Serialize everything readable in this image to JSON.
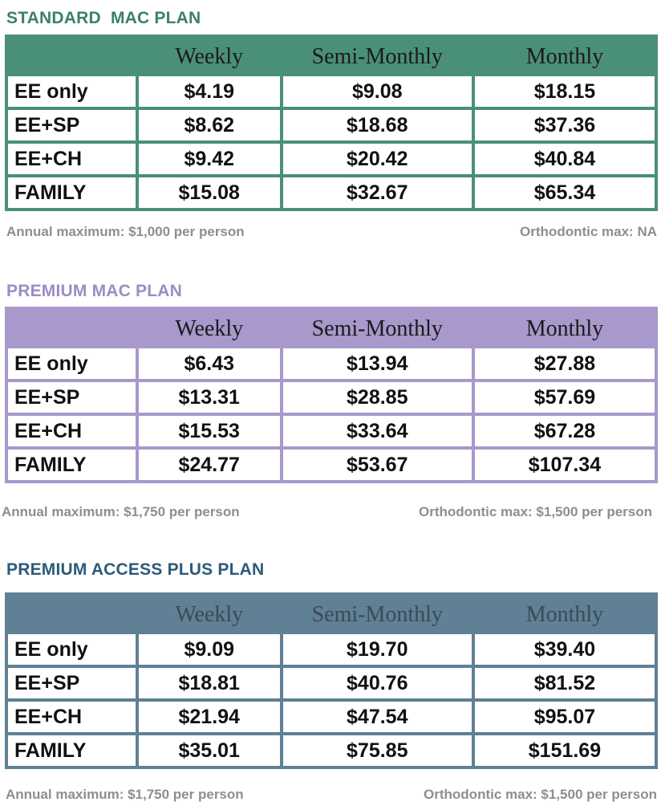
{
  "columns": [
    "Weekly",
    "Semi-Monthly",
    "Monthly"
  ],
  "plans": [
    {
      "title": "STANDARD  MAC PLAN",
      "title_color": "#3b8068",
      "table_color": "#4a9076",
      "header_text_color": "#1a1a1a",
      "rows": [
        {
          "tier": "EE only",
          "values": [
            "$4.19",
            "$9.08",
            "$18.15"
          ]
        },
        {
          "tier": "EE+SP",
          "values": [
            "$8.62",
            "$18.68",
            "$37.36"
          ]
        },
        {
          "tier": "EE+CH",
          "values": [
            "$9.42",
            "$20.42",
            "$40.84"
          ]
        },
        {
          "tier": "FAMILY",
          "values": [
            "$15.08",
            "$32.67",
            "$65.34"
          ]
        }
      ],
      "annual_max": "Annual maximum: $1,000 per person",
      "ortho_max": "Orthodontic max: NA"
    },
    {
      "title": "PREMIUM MAC PLAN",
      "title_color": "#9d8cc4",
      "table_color": "#a898cc",
      "header_text_color": "#1a1a1a",
      "rows": [
        {
          "tier": "EE only",
          "values": [
            "$6.43",
            "$13.94",
            "$27.88"
          ]
        },
        {
          "tier": "EE+SP",
          "values": [
            "$13.31",
            "$28.85",
            "$57.69"
          ]
        },
        {
          "tier": "EE+CH",
          "values": [
            "$15.53",
            "$33.64",
            "$67.28"
          ]
        },
        {
          "tier": "FAMILY",
          "values": [
            "$24.77",
            "$53.67",
            "$107.34"
          ]
        }
      ],
      "annual_max": "Annual maximum: $1,750 per person",
      "ortho_max": "Orthodontic max: $1,500 per person"
    },
    {
      "title": "PREMIUM ACCESS PLUS PLAN",
      "title_color": "#2d5a78",
      "table_color": "#5f8095",
      "header_text_color": "#3c4a54",
      "rows": [
        {
          "tier": "EE only",
          "values": [
            "$9.09",
            "$19.70",
            "$39.40"
          ]
        },
        {
          "tier": "EE+SP",
          "values": [
            "$18.81",
            "$40.76",
            "$81.52"
          ]
        },
        {
          "tier": "EE+CH",
          "values": [
            "$21.94",
            "$47.54",
            "$95.07"
          ]
        },
        {
          "tier": "FAMILY",
          "values": [
            "$35.01",
            "$75.85",
            "$151.69"
          ]
        }
      ],
      "annual_max": "Annual maximum: $1,750 per person",
      "ortho_max": "Orthodontic max: $1,500 per person"
    }
  ]
}
